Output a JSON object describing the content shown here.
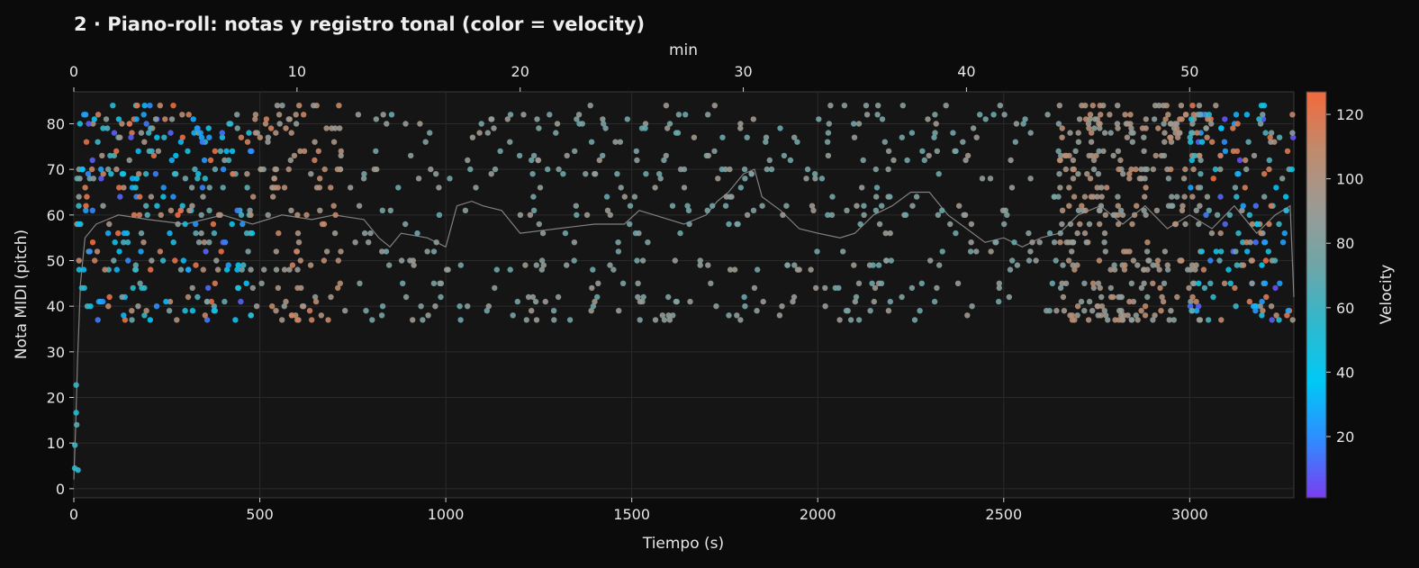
{
  "chart_data": {
    "type": "scatter",
    "title": "2 · Piano-roll: notas y registro tonal (color = velocity)",
    "xlabel": "Tiempo (s)",
    "ylabel": "Nota MIDI (pitch)",
    "secondary_xlabel": "min",
    "colorbar_label": "Velocity",
    "xlim": [
      0,
      3280
    ],
    "ylim": [
      -2,
      87
    ],
    "secondary_xlim": [
      0,
      54.67
    ],
    "colorbar_range": [
      1,
      127
    ],
    "x_ticks": [
      0,
      500,
      1000,
      1500,
      2000,
      2500,
      3000
    ],
    "y_ticks": [
      0,
      10,
      20,
      30,
      40,
      50,
      60,
      70,
      80
    ],
    "secondary_x_ticks": [
      0,
      10,
      20,
      30,
      40,
      50
    ],
    "colorbar_ticks": [
      20,
      40,
      60,
      80,
      100,
      120
    ],
    "colormap": [
      "#7b3df0",
      "#2f8cff",
      "#00c8f5",
      "#2fb8cc",
      "#6fa5a8",
      "#9b9a94",
      "#c08a6c",
      "#f26a3c"
    ],
    "grid": true,
    "series": [
      {
        "kind": "notes",
        "segments": [
          {
            "t0": 0,
            "t1": 12,
            "pitch_min": 1,
            "pitch_max": 25,
            "vel_min": 40,
            "vel_max": 70,
            "count": 6
          },
          {
            "t0": 8,
            "t1": 480,
            "pitch_min": 37,
            "pitch_max": 84,
            "vel_min": 8,
            "vel_max": 127,
            "count": 300
          },
          {
            "t0": 470,
            "t1": 720,
            "pitch_min": 37,
            "pitch_max": 84,
            "vel_min": 85,
            "vel_max": 115,
            "count": 120
          },
          {
            "t0": 720,
            "t1": 1200,
            "pitch_min": 37,
            "pitch_max": 84,
            "vel_min": 70,
            "vel_max": 95,
            "count": 90
          },
          {
            "t0": 1200,
            "t1": 2650,
            "pitch_min": 37,
            "pitch_max": 84,
            "vel_min": 70,
            "vel_max": 95,
            "count": 380
          },
          {
            "t0": 2650,
            "t1": 3030,
            "pitch_min": 37,
            "pitch_max": 84,
            "vel_min": 80,
            "vel_max": 110,
            "count": 320
          },
          {
            "t0": 3000,
            "t1": 3280,
            "pitch_min": 37,
            "pitch_max": 84,
            "vel_min": 5,
            "vel_max": 127,
            "count": 180
          }
        ]
      },
      {
        "kind": "mean_pitch_line",
        "color": "#8c8c8c",
        "points": [
          [
            0,
            2
          ],
          [
            5,
            14
          ],
          [
            10,
            28
          ],
          [
            18,
            45
          ],
          [
            30,
            55
          ],
          [
            60,
            58
          ],
          [
            120,
            60
          ],
          [
            200,
            59
          ],
          [
            300,
            58
          ],
          [
            400,
            60
          ],
          [
            480,
            58
          ],
          [
            560,
            60
          ],
          [
            640,
            59
          ],
          [
            700,
            60
          ],
          [
            780,
            59
          ],
          [
            820,
            55
          ],
          [
            850,
            53
          ],
          [
            880,
            56
          ],
          [
            950,
            55
          ],
          [
            1000,
            53
          ],
          [
            1030,
            62
          ],
          [
            1070,
            63
          ],
          [
            1100,
            62
          ],
          [
            1150,
            61
          ],
          [
            1200,
            56
          ],
          [
            1300,
            57
          ],
          [
            1400,
            58
          ],
          [
            1480,
            58
          ],
          [
            1520,
            61
          ],
          [
            1560,
            60
          ],
          [
            1640,
            58
          ],
          [
            1700,
            60
          ],
          [
            1730,
            63
          ],
          [
            1760,
            65
          ],
          [
            1800,
            69
          ],
          [
            1830,
            70
          ],
          [
            1850,
            64
          ],
          [
            1900,
            61
          ],
          [
            1950,
            57
          ],
          [
            2000,
            56
          ],
          [
            2060,
            55
          ],
          [
            2100,
            56
          ],
          [
            2150,
            60
          ],
          [
            2200,
            62
          ],
          [
            2250,
            65
          ],
          [
            2300,
            65
          ],
          [
            2350,
            60
          ],
          [
            2400,
            57
          ],
          [
            2450,
            54
          ],
          [
            2500,
            55
          ],
          [
            2550,
            53
          ],
          [
            2600,
            55
          ],
          [
            2650,
            56
          ],
          [
            2700,
            60
          ],
          [
            2760,
            62
          ],
          [
            2820,
            58
          ],
          [
            2880,
            62
          ],
          [
            2940,
            57
          ],
          [
            3000,
            60
          ],
          [
            3060,
            57
          ],
          [
            3120,
            62
          ],
          [
            3180,
            56
          ],
          [
            3230,
            60
          ],
          [
            3270,
            62
          ],
          [
            3280,
            42
          ]
        ]
      }
    ]
  }
}
